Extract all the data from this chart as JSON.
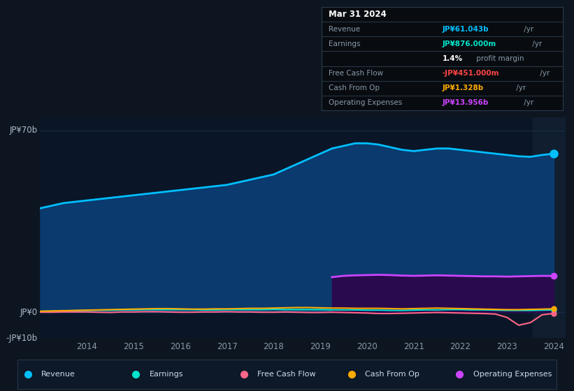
{
  "background_color": "#0d1520",
  "plot_bg_color": "#0a1628",
  "grid_color": "#1e3050",
  "ylim": [
    -10,
    75
  ],
  "ytick_positions": [
    -10,
    0,
    70
  ],
  "ytick_labels": [
    "-JP¥10b",
    "JP¥0",
    "JP¥70b"
  ],
  "xticks": [
    2014,
    2015,
    2016,
    2017,
    2018,
    2019,
    2020,
    2021,
    2022,
    2023,
    2024
  ],
  "legend_items": [
    {
      "label": "Revenue",
      "color": "#00bfff"
    },
    {
      "label": "Earnings",
      "color": "#00e5cc"
    },
    {
      "label": "Free Cash Flow",
      "color": "#ff6688"
    },
    {
      "label": "Cash From Op",
      "color": "#ffaa00"
    },
    {
      "label": "Operating Expenses",
      "color": "#cc44ff"
    }
  ],
  "info_box": {
    "date": "Mar 31 2024",
    "rows": [
      {
        "label": "Revenue",
        "value": "JP¥61.043b",
        "value_color": "#00bfff",
        "suffix": " /yr"
      },
      {
        "label": "Earnings",
        "value": "JP¥876.000m",
        "value_color": "#00e5cc",
        "suffix": " /yr"
      },
      {
        "label": "",
        "value": "1.4%",
        "value_color": "#ffffff",
        "suffix": " profit margin"
      },
      {
        "label": "Free Cash Flow",
        "value": "-JP¥451.000m",
        "value_color": "#ff4444",
        "suffix": " /yr"
      },
      {
        "label": "Cash From Op",
        "value": "JP¥1.328b",
        "value_color": "#ffaa00",
        "suffix": " /yr"
      },
      {
        "label": "Operating Expenses",
        "value": "JP¥13.956b",
        "value_color": "#cc44ff",
        "suffix": " /yr"
      }
    ]
  },
  "revenue": {
    "x": [
      2013.0,
      2013.25,
      2013.5,
      2013.75,
      2014.0,
      2014.25,
      2014.5,
      2014.75,
      2015.0,
      2015.25,
      2015.5,
      2015.75,
      2016.0,
      2016.25,
      2016.5,
      2016.75,
      2017.0,
      2017.25,
      2017.5,
      2017.75,
      2018.0,
      2018.25,
      2018.5,
      2018.75,
      2019.0,
      2019.25,
      2019.5,
      2019.75,
      2020.0,
      2020.25,
      2020.5,
      2020.75,
      2021.0,
      2021.25,
      2021.5,
      2021.75,
      2022.0,
      2022.25,
      2022.5,
      2022.75,
      2023.0,
      2023.25,
      2023.5,
      2023.75,
      2024.0
    ],
    "y": [
      40,
      41,
      42,
      42.5,
      43,
      43.5,
      44,
      44.5,
      45,
      45.5,
      46,
      46.5,
      47,
      47.5,
      48,
      48.5,
      49,
      50,
      51,
      52,
      53,
      55,
      57,
      59,
      61,
      63,
      64,
      65,
      65,
      64.5,
      63.5,
      62.5,
      62,
      62.5,
      63,
      63,
      62.5,
      62,
      61.5,
      61,
      60.5,
      60,
      59.8,
      60.5,
      61.0
    ],
    "color": "#00bfff",
    "fill_color": "#0a3a6e",
    "linewidth": 2.0
  },
  "op_expenses": {
    "x": [
      2019.25,
      2019.5,
      2019.75,
      2020.0,
      2020.25,
      2020.5,
      2020.75,
      2021.0,
      2021.25,
      2021.5,
      2021.75,
      2022.0,
      2022.25,
      2022.5,
      2022.75,
      2023.0,
      2023.25,
      2023.5,
      2023.75,
      2024.0
    ],
    "y": [
      13.5,
      14.0,
      14.2,
      14.3,
      14.4,
      14.3,
      14.1,
      14.0,
      14.1,
      14.2,
      14.1,
      14.0,
      13.9,
      13.8,
      13.8,
      13.7,
      13.8,
      13.9,
      14.0,
      13.956
    ],
    "color": "#cc44ff",
    "fill_color": "#2a0a4e",
    "linewidth": 2.0
  },
  "earnings": {
    "x": [
      2013.0,
      2013.25,
      2013.5,
      2013.75,
      2014.0,
      2014.25,
      2014.5,
      2014.75,
      2015.0,
      2015.25,
      2015.5,
      2015.75,
      2016.0,
      2016.25,
      2016.5,
      2016.75,
      2017.0,
      2017.25,
      2017.5,
      2017.75,
      2018.0,
      2018.25,
      2018.5,
      2018.75,
      2019.0,
      2019.25,
      2019.5,
      2019.75,
      2020.0,
      2020.25,
      2020.5,
      2020.75,
      2021.0,
      2021.25,
      2021.5,
      2021.75,
      2022.0,
      2022.25,
      2022.5,
      2022.75,
      2023.0,
      2023.25,
      2023.5,
      2023.75,
      2024.0
    ],
    "y": [
      0.3,
      0.4,
      0.5,
      0.6,
      0.7,
      0.8,
      0.8,
      0.9,
      0.9,
      1.0,
      1.0,
      1.0,
      1.0,
      1.0,
      0.9,
      0.9,
      1.0,
      1.0,
      1.0,
      1.0,
      1.1,
      1.0,
      1.0,
      1.0,
      1.0,
      0.9,
      0.9,
      0.9,
      0.8,
      0.8,
      0.7,
      0.7,
      0.8,
      0.9,
      0.9,
      1.0,
      1.0,
      0.9,
      0.9,
      0.8,
      0.7,
      0.7,
      0.7,
      0.8,
      0.876
    ],
    "color": "#00e5cc",
    "linewidth": 1.5
  },
  "free_cash_flow": {
    "x": [
      2013.0,
      2013.25,
      2013.5,
      2013.75,
      2014.0,
      2014.25,
      2014.5,
      2014.75,
      2015.0,
      2015.25,
      2015.5,
      2015.75,
      2016.0,
      2016.25,
      2016.5,
      2016.75,
      2017.0,
      2017.25,
      2017.5,
      2017.75,
      2018.0,
      2018.25,
      2018.5,
      2018.75,
      2019.0,
      2019.25,
      2019.5,
      2019.75,
      2020.0,
      2020.25,
      2020.5,
      2020.75,
      2021.0,
      2021.25,
      2021.5,
      2021.75,
      2022.0,
      2022.25,
      2022.5,
      2022.75,
      2023.0,
      2023.25,
      2023.5,
      2023.75,
      2024.0
    ],
    "y": [
      0.0,
      0.0,
      0.1,
      0.1,
      0.1,
      0.0,
      -0.1,
      0.1,
      0.1,
      0.2,
      0.2,
      0.1,
      0.0,
      0.0,
      0.1,
      0.1,
      0.2,
      0.1,
      0.1,
      0.0,
      0.0,
      0.1,
      0.0,
      -0.1,
      -0.1,
      0.0,
      -0.1,
      -0.2,
      -0.3,
      -0.5,
      -0.5,
      -0.4,
      -0.3,
      -0.2,
      -0.1,
      -0.2,
      -0.3,
      -0.4,
      -0.5,
      -0.7,
      -2.0,
      -5.0,
      -4.0,
      -1.0,
      -0.451
    ],
    "color": "#ff6688",
    "linewidth": 1.5
  },
  "cash_from_op": {
    "x": [
      2013.0,
      2013.25,
      2013.5,
      2013.75,
      2014.0,
      2014.25,
      2014.5,
      2014.75,
      2015.0,
      2015.25,
      2015.5,
      2015.75,
      2016.0,
      2016.25,
      2016.5,
      2016.75,
      2017.0,
      2017.25,
      2017.5,
      2017.75,
      2018.0,
      2018.25,
      2018.5,
      2018.75,
      2019.0,
      2019.25,
      2019.5,
      2019.75,
      2020.0,
      2020.25,
      2020.5,
      2020.75,
      2021.0,
      2021.25,
      2021.5,
      2021.75,
      2022.0,
      2022.25,
      2022.5,
      2022.75,
      2023.0,
      2023.25,
      2023.5,
      2023.75,
      2024.0
    ],
    "y": [
      0.4,
      0.5,
      0.6,
      0.7,
      0.8,
      0.9,
      1.0,
      1.1,
      1.2,
      1.3,
      1.4,
      1.4,
      1.3,
      1.2,
      1.2,
      1.3,
      1.3,
      1.4,
      1.5,
      1.5,
      1.6,
      1.7,
      1.8,
      1.8,
      1.7,
      1.6,
      1.6,
      1.5,
      1.5,
      1.5,
      1.4,
      1.3,
      1.4,
      1.5,
      1.6,
      1.5,
      1.4,
      1.3,
      1.2,
      1.1,
      1.0,
      1.0,
      1.1,
      1.2,
      1.328
    ],
    "color": "#ffaa00",
    "linewidth": 1.5
  }
}
